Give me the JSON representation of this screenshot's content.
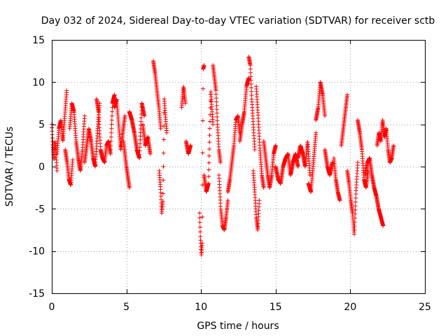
{
  "chart_data": {
    "type": "scatter",
    "title": "Day 032 of 2024, Sidereal Day-to-day VTEC variation (SDTVAR) for receiver sctb",
    "xlabel": "GPS time / hours",
    "ylabel": "SDTVAR / TECUs",
    "xlim": [
      0,
      25
    ],
    "ylim": [
      -15,
      15
    ],
    "xticks": [
      0,
      5,
      10,
      15,
      20,
      25
    ],
    "yticks": [
      -15,
      -10,
      -5,
      0,
      5,
      10,
      15
    ],
    "grid": true,
    "marker": "+",
    "color": "#ff0000",
    "segments": [
      {
        "x0": 0.0,
        "x1": 0.35,
        "values": [
          5.0,
          2.5,
          0.8,
          3.0,
          1.5,
          -0.5
        ]
      },
      {
        "x0": 0.35,
        "x1": 1.0,
        "values": [
          1.5,
          4.5,
          5.5,
          3.0,
          6.0,
          9.0
        ]
      },
      {
        "x0": 0.9,
        "x1": 1.4,
        "values": [
          2.0,
          0.5,
          -1.5,
          -2.2,
          0.8
        ]
      },
      {
        "x0": 1.2,
        "x1": 2.2,
        "values": [
          4.5,
          7.5,
          6.5,
          3.0,
          1.0,
          -0.5,
          2.0,
          6.0
        ]
      },
      {
        "x0": 2.2,
        "x1": 3.2,
        "values": [
          0.5,
          2.5,
          4.5,
          3.0,
          1.0,
          0.0,
          4.0,
          7.5
        ]
      },
      {
        "x0": 3.0,
        "x1": 4.2,
        "values": [
          8.0,
          6.5,
          2.0,
          1.0,
          0.5,
          2.5,
          3.0,
          1.5,
          7.5,
          8.5
        ]
      },
      {
        "x0": 4.2,
        "x1": 4.9,
        "values": [
          7.0,
          8.0,
          5.0,
          2.0,
          4.0,
          6.0
        ]
      },
      {
        "x0": 4.8,
        "x1": 5.2,
        "values": [
          3.0,
          0.0,
          -2.5
        ]
      },
      {
        "x0": 5.2,
        "x1": 6.2,
        "values": [
          6.5,
          5.5,
          4.0,
          2.0,
          1.0,
          7.5,
          6.0
        ]
      },
      {
        "x0": 6.1,
        "x1": 6.6,
        "values": [
          5.0,
          2.5,
          3.5,
          1.5
        ]
      },
      {
        "x0": 6.8,
        "x1": 7.3,
        "values": [
          12.5,
          11.0,
          9.0,
          7.0,
          4.5
        ]
      },
      {
        "x0": 7.2,
        "x1": 7.7,
        "values": [
          -0.5,
          -2.5,
          -5.5,
          -4.0,
          8.0,
          6.0,
          4.0
        ]
      },
      {
        "x0": 8.7,
        "x1": 8.95,
        "values": [
          7.0,
          9.5,
          7.5
        ]
      },
      {
        "x0": 9.0,
        "x1": 9.3,
        "values": [
          3.0,
          1.5,
          2.5
        ]
      },
      {
        "x0": 9.9,
        "x1": 10.2,
        "values": [
          -5.5,
          -8.5,
          -10.5,
          -9.0,
          11.5,
          12.0
        ]
      },
      {
        "x0": 10.2,
        "x1": 10.8,
        "values": [
          -1.0,
          -3.0,
          -2.0,
          9.0,
          5.0
        ]
      },
      {
        "x0": 10.8,
        "x1": 11.3,
        "values": [
          12.0,
          10.5,
          9.0,
          5.0,
          2.0,
          0.5
        ]
      },
      {
        "x0": 11.2,
        "x1": 11.8,
        "values": [
          -1.0,
          -5.0,
          -7.0,
          -7.5,
          -6.0,
          -4.0
        ]
      },
      {
        "x0": 11.8,
        "x1": 12.6,
        "values": [
          -3.0,
          -1.5,
          0.5,
          2.5,
          5.5,
          6.0,
          4.0
        ]
      },
      {
        "x0": 12.6,
        "x1": 13.2,
        "values": [
          3.0,
          5.0,
          6.5,
          9.5,
          10.5
        ]
      },
      {
        "x0": 13.2,
        "x1": 13.6,
        "values": [
          13.0,
          12.0,
          8.0,
          5.0,
          2.0
        ]
      },
      {
        "x0": 13.5,
        "x1": 13.9,
        "values": [
          -0.5,
          -3.0,
          -6.0,
          -7.5,
          -4.0
        ]
      },
      {
        "x0": 13.7,
        "x1": 14.2,
        "values": [
          9.5,
          6.0,
          2.0,
          -1.0,
          -2.5
        ]
      },
      {
        "x0": 14.2,
        "x1": 15.0,
        "values": [
          3.0,
          1.0,
          -1.0,
          -2.5,
          -1.0,
          1.5,
          2.5
        ]
      },
      {
        "x0": 15.0,
        "x1": 16.5,
        "values": [
          0.0,
          -1.5,
          -2.0,
          0.0,
          1.0,
          1.5,
          -1.0,
          0.5,
          1.5,
          0.0
        ]
      },
      {
        "x0": 16.5,
        "x1": 17.3,
        "values": [
          1.0,
          2.5,
          1.5,
          0.0,
          3.0,
          -1.0
        ]
      },
      {
        "x0": 17.2,
        "x1": 17.7,
        "values": [
          -2.0,
          -3.0,
          0.5,
          4.0
        ]
      },
      {
        "x0": 17.7,
        "x1": 18.3,
        "values": [
          5.5,
          7.0,
          10.0,
          8.5,
          6.0
        ]
      },
      {
        "x0": 18.3,
        "x1": 18.8,
        "values": [
          2.0,
          0.0,
          -1.0,
          0.5
        ]
      },
      {
        "x0": 18.9,
        "x1": 19.3,
        "values": [
          1.0,
          -1.5,
          -3.0,
          -4.0
        ]
      },
      {
        "x0": 19.4,
        "x1": 19.8,
        "values": [
          2.5,
          4.5,
          6.5,
          8.5
        ]
      },
      {
        "x0": 19.8,
        "x1": 20.5,
        "values": [
          -0.5,
          -2.0,
          -4.0,
          -5.5,
          -8.0,
          -3.0,
          0.5
        ]
      },
      {
        "x0": 20.5,
        "x1": 21.2,
        "values": [
          5.5,
          4.0,
          2.0,
          -1.5,
          -2.5,
          -0.5
        ]
      },
      {
        "x0": 21.0,
        "x1": 22.2,
        "values": [
          -1.0,
          0.5,
          1.0,
          -1.0,
          -2.5,
          -3.5,
          -5.0,
          -6.0,
          -7.0
        ]
      },
      {
        "x0": 21.8,
        "x1": 22.9,
        "values": [
          2.5,
          4.0,
          3.0,
          5.5,
          3.5,
          4.5,
          2.0,
          0.5,
          1.0,
          2.5
        ]
      }
    ]
  }
}
